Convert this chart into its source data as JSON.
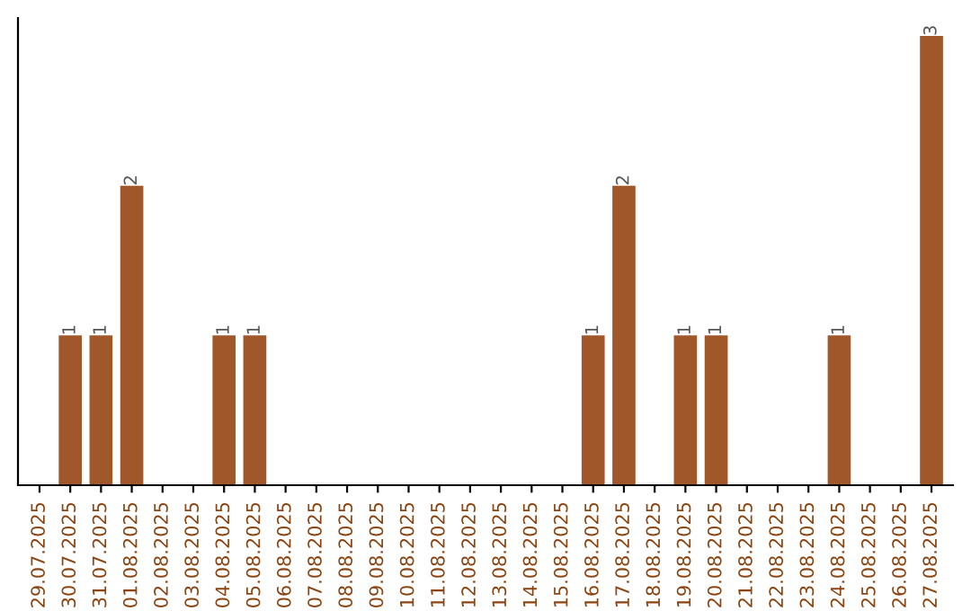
{
  "chart_data": {
    "type": "bar",
    "categories": [
      "29.07.2025",
      "30.07.2025",
      "31.07.2025",
      "01.08.2025",
      "02.08.2025",
      "03.08.2025",
      "04.08.2025",
      "05.08.2025",
      "06.08.2025",
      "07.08.2025",
      "08.08.2025",
      "09.08.2025",
      "10.08.2025",
      "11.08.2025",
      "12.08.2025",
      "13.08.2025",
      "14.08.2025",
      "15.08.2025",
      "16.08.2025",
      "17.08.2025",
      "18.08.2025",
      "19.08.2025",
      "20.08.2025",
      "21.08.2025",
      "22.08.2025",
      "23.08.2025",
      "24.08.2025",
      "25.08.2025",
      "26.08.2025",
      "27.08.2025"
    ],
    "values": [
      0,
      1,
      1,
      2,
      0,
      0,
      1,
      1,
      0,
      0,
      0,
      0,
      0,
      0,
      0,
      0,
      0,
      0,
      1,
      2,
      0,
      1,
      1,
      0,
      0,
      0,
      1,
      0,
      0,
      3
    ],
    "value_labels": [
      null,
      "1",
      "1",
      "2",
      null,
      null,
      "1",
      "1",
      null,
      null,
      null,
      null,
      null,
      null,
      null,
      null,
      null,
      null,
      "1",
      "2",
      null,
      "1",
      "1",
      null,
      null,
      null,
      "1",
      null,
      null,
      "3"
    ],
    "color": "#a0572a",
    "grid": false,
    "tick_labels": "x"
  }
}
